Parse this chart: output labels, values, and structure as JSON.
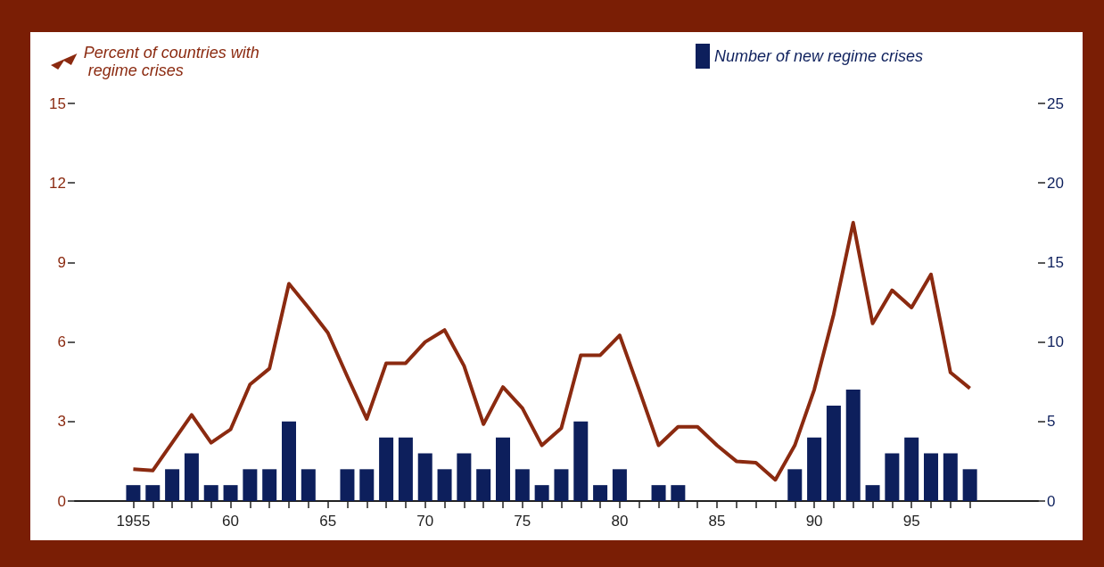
{
  "chart_data": {
    "type": "bar",
    "x": [
      1955,
      1956,
      1957,
      1958,
      1959,
      1960,
      1961,
      1962,
      1963,
      1964,
      1965,
      1966,
      1967,
      1968,
      1969,
      1970,
      1971,
      1972,
      1973,
      1974,
      1975,
      1976,
      1977,
      1978,
      1979,
      1980,
      1981,
      1982,
      1983,
      1984,
      1985,
      1986,
      1987,
      1988,
      1989,
      1990,
      1991,
      1992,
      1993,
      1994,
      1995,
      1996,
      1997,
      1998
    ],
    "series": [
      {
        "name": "Percent of countries with regime crises",
        "type": "line",
        "color": "#8b2a10",
        "values": [
          1.2,
          1.15,
          2.2,
          3.25,
          2.2,
          2.7,
          4.4,
          5.0,
          8.2,
          7.3,
          6.35,
          4.7,
          3.1,
          5.2,
          5.2,
          6.0,
          6.45,
          5.1,
          2.9,
          4.3,
          3.5,
          2.1,
          2.75,
          5.5,
          5.5,
          6.25,
          4.2,
          2.1,
          2.8,
          2.8,
          2.1,
          1.5,
          1.45,
          0.8,
          2.1,
          4.2,
          7.05,
          10.5,
          6.7,
          7.95,
          7.3,
          8.55,
          4.85,
          4.25
        ]
      },
      {
        "name": "Number of new regime crises",
        "axis": "y2",
        "color": "#0d1f5c",
        "values": [
          1,
          1,
          2,
          3,
          1,
          1,
          2,
          2,
          5,
          2,
          0,
          2,
          2,
          4,
          4,
          3,
          2,
          3,
          2,
          4,
          2,
          1,
          2,
          5,
          1,
          2,
          0,
          1,
          1,
          0,
          0,
          0,
          0,
          0,
          2,
          4,
          6,
          7,
          1,
          3,
          4,
          3,
          3,
          2
        ]
      }
    ],
    "xlim": [
      1952,
      2001.5
    ],
    "xticks": [
      {
        "value": 1955,
        "label": "1955"
      },
      {
        "value": 1956,
        "label": null
      },
      {
        "value": 1957,
        "label": null
      },
      {
        "value": 1958,
        "label": null
      },
      {
        "value": 1959,
        "label": null
      },
      {
        "value": 1960,
        "label": "60"
      },
      {
        "value": 1961,
        "label": null
      },
      {
        "value": 1962,
        "label": null
      },
      {
        "value": 1963,
        "label": null
      },
      {
        "value": 1964,
        "label": null
      },
      {
        "value": 1965,
        "label": "65"
      },
      {
        "value": 1966,
        "label": null
      },
      {
        "value": 1967,
        "label": null
      },
      {
        "value": 1968,
        "label": null
      },
      {
        "value": 1969,
        "label": null
      },
      {
        "value": 1970,
        "label": "70"
      },
      {
        "value": 1971,
        "label": null
      },
      {
        "value": 1972,
        "label": null
      },
      {
        "value": 1973,
        "label": null
      },
      {
        "value": 1974,
        "label": null
      },
      {
        "value": 1975,
        "label": "75"
      },
      {
        "value": 1976,
        "label": null
      },
      {
        "value": 1977,
        "label": null
      },
      {
        "value": 1978,
        "label": null
      },
      {
        "value": 1979,
        "label": null
      },
      {
        "value": 1980,
        "label": "80"
      },
      {
        "value": 1981,
        "label": null
      },
      {
        "value": 1982,
        "label": null
      },
      {
        "value": 1983,
        "label": null
      },
      {
        "value": 1984,
        "label": null
      },
      {
        "value": 1985,
        "label": "85"
      },
      {
        "value": 1986,
        "label": null
      },
      {
        "value": 1987,
        "label": null
      },
      {
        "value": 1988,
        "label": null
      },
      {
        "value": 1989,
        "label": null
      },
      {
        "value": 1990,
        "label": "90"
      },
      {
        "value": 1991,
        "label": null
      },
      {
        "value": 1992,
        "label": null
      },
      {
        "value": 1993,
        "label": null
      },
      {
        "value": 1994,
        "label": null
      },
      {
        "value": 1995,
        "label": "95"
      },
      {
        "value": 1996,
        "label": null
      },
      {
        "value": 1997,
        "label": null
      },
      {
        "value": 1998,
        "label": null
      }
    ],
    "ylim": [
      0,
      15
    ],
    "yticks": [
      0,
      3,
      6,
      9,
      12,
      15
    ],
    "y2lim": [
      0,
      25
    ],
    "y2ticks": [
      0,
      5,
      10,
      15,
      20,
      25
    ],
    "legend": "top"
  }
}
